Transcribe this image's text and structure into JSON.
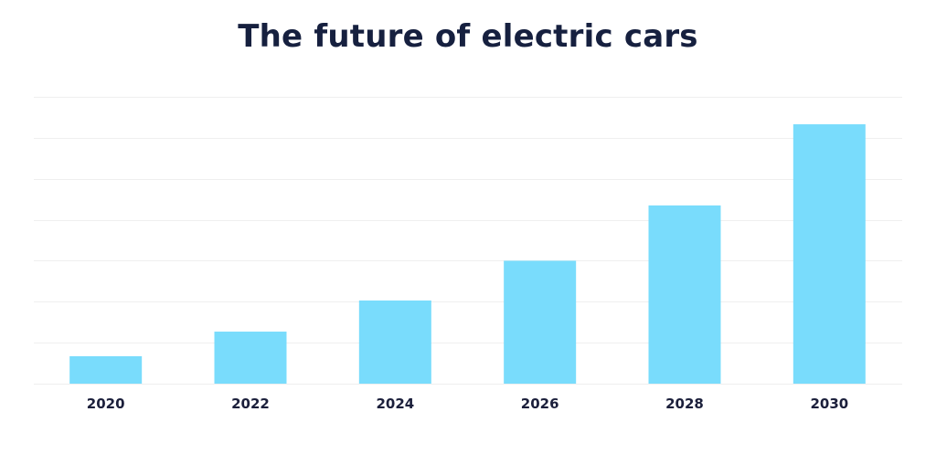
{
  "chart_data": {
    "type": "bar",
    "title": "The future of electric cars",
    "xlabel": "",
    "ylabel": "",
    "categories": [
      "2020",
      "2022",
      "2024",
      "2026",
      "2028",
      "2030"
    ],
    "values": [
      0.67,
      1.27,
      2.03,
      3.0,
      4.35,
      6.33
    ],
    "ylim": [
      0,
      7
    ],
    "y_gridlines": [
      0,
      1,
      2,
      3,
      4,
      5,
      6,
      7
    ],
    "y_tick_labels_shown": false,
    "grid": true,
    "legend": "none",
    "colors": {
      "bar": "#79dcfc",
      "title": "#16203f",
      "tick": "#1b1f3b",
      "grid": "#efefef"
    }
  }
}
